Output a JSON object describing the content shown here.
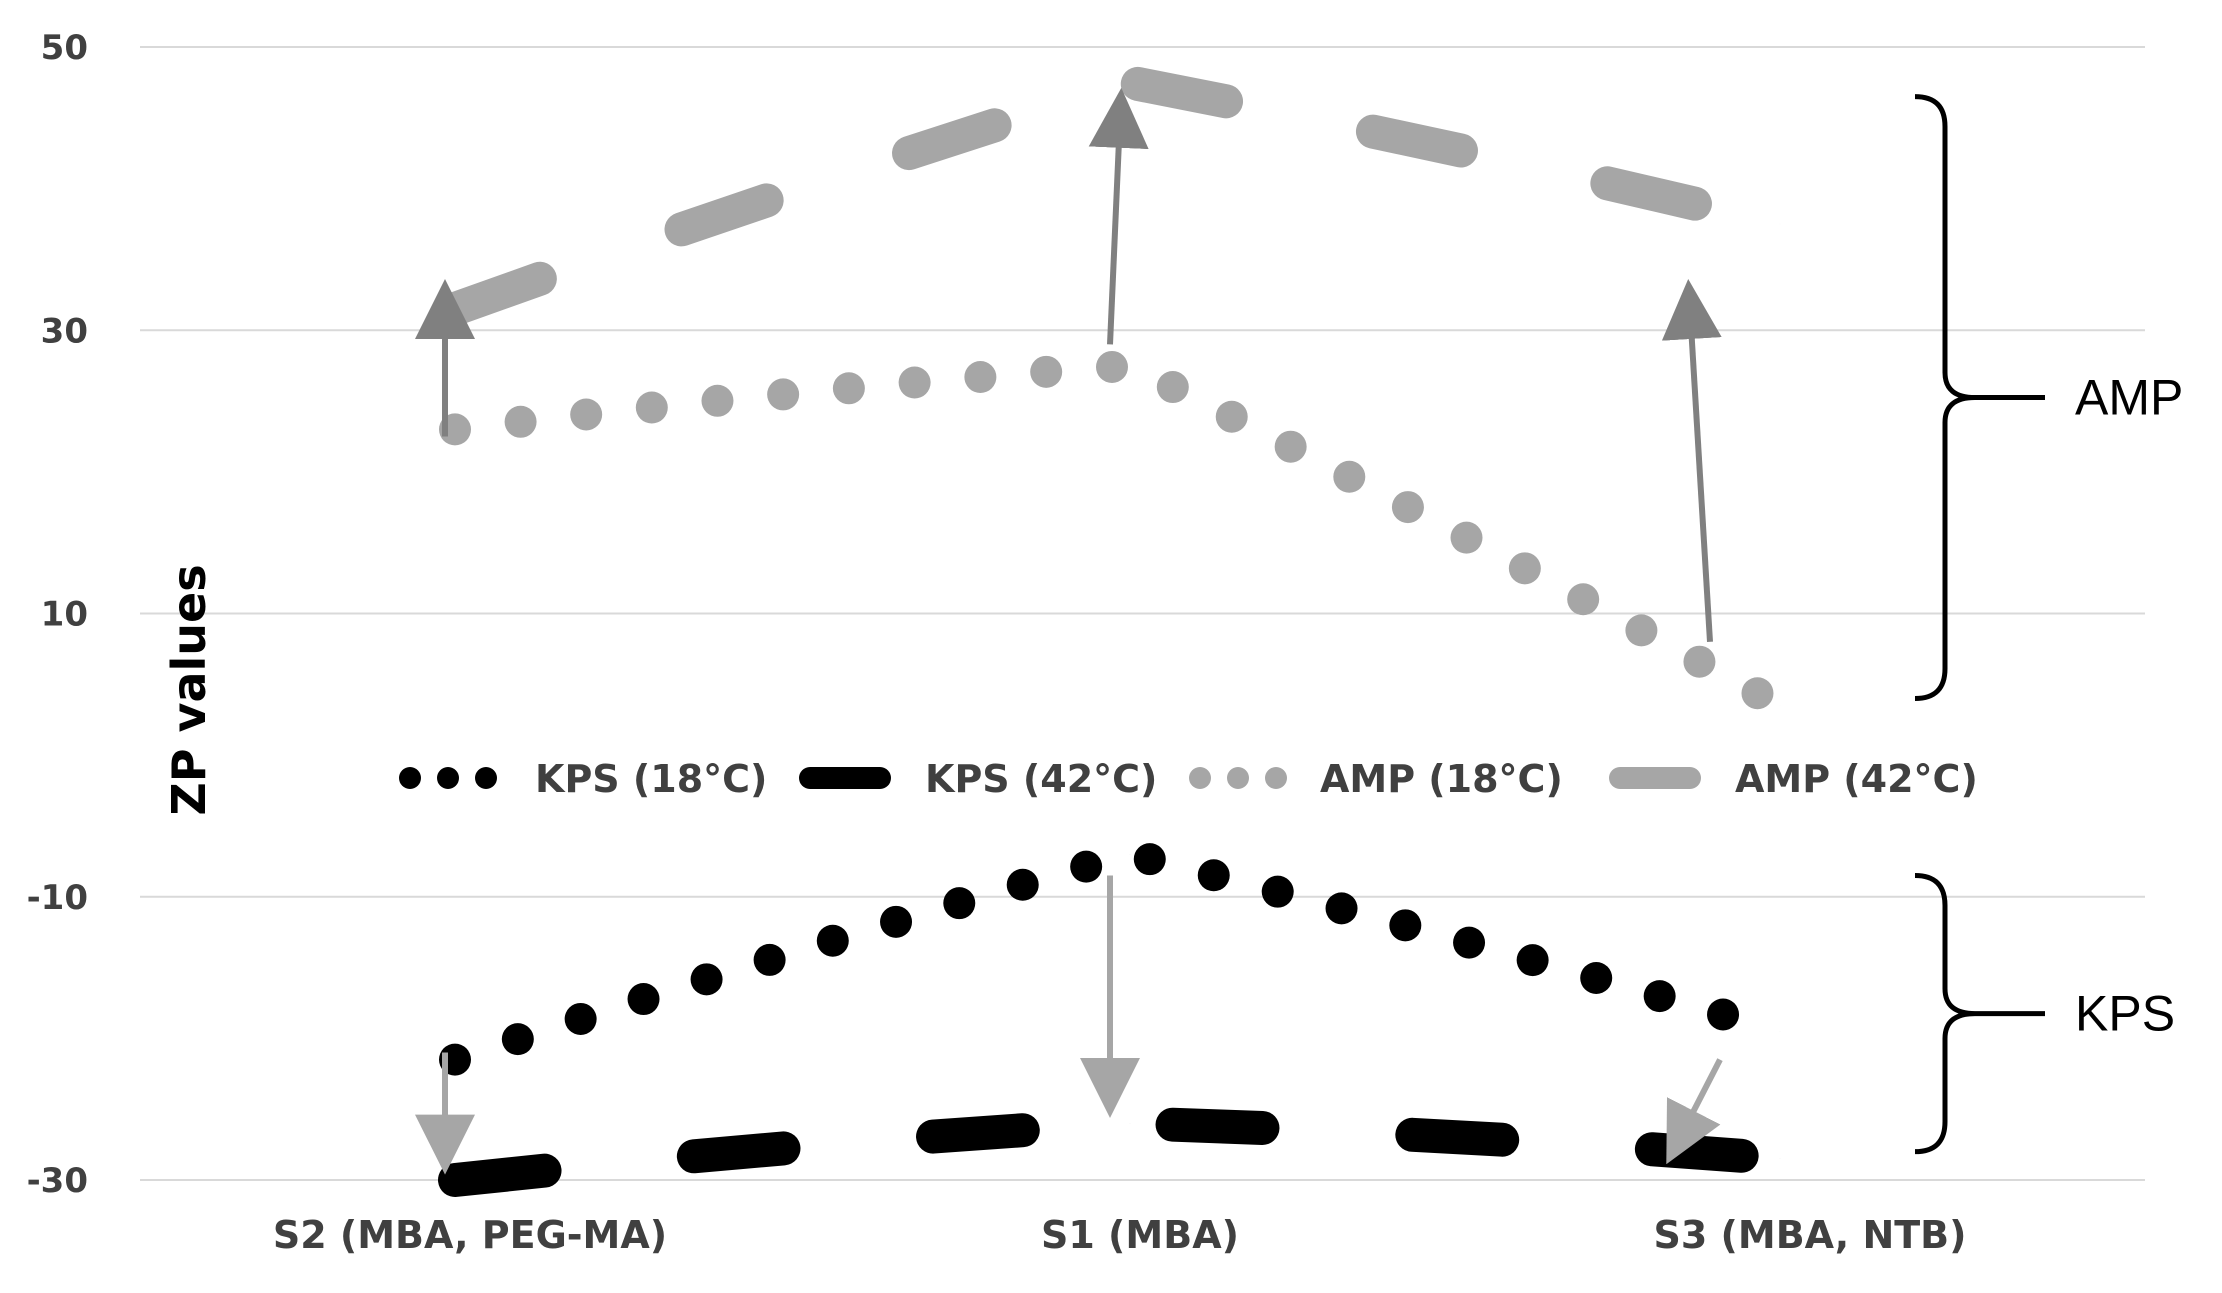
{
  "chart_data": {
    "type": "line",
    "title": "",
    "ylabel": "ZP values",
    "xlabel": "",
    "ylim": [
      -30,
      50
    ],
    "y_ticks": [
      "50",
      "30",
      "10",
      "-10",
      "-30"
    ],
    "y_tick_values": [
      50,
      30,
      10,
      -10,
      -30
    ],
    "grid": true,
    "legend_placement": "center",
    "categories": [
      "S2 (MBA, PEG-MA)",
      "S1 (MBA)",
      "S3 (MBA, NTB)"
    ],
    "series": [
      {
        "name": "KPS (18°C)",
        "values": [
          -21.5,
          -7,
          -19.5
        ],
        "style": "dotted",
        "color": "#000000"
      },
      {
        "name": "KPS (42°C)",
        "values": [
          -30,
          -26,
          -28.5
        ],
        "style": "dashed",
        "color": "#000000"
      },
      {
        "name": "AMP (18°C)",
        "values": [
          23,
          27.5,
          3.5
        ],
        "style": "dotted",
        "color": "#a6a6a6"
      },
      {
        "name": "AMP (42°C)",
        "values": [
          31.5,
          47.5,
          37.5
        ],
        "style": "dashed",
        "color": "#a6a6a6"
      }
    ],
    "arrows": [
      {
        "category_index": 0,
        "from": 22.5,
        "to": 31.5,
        "color": "#808080"
      },
      {
        "category_index": 1,
        "from": 29,
        "to": 45,
        "color": "#808080"
      },
      {
        "category_index": 2,
        "from": 8,
        "to": 31.5,
        "color": "#808080"
      },
      {
        "category_index": 0,
        "from": -21,
        "to": -27.5,
        "color": "#a6a6a6"
      },
      {
        "category_index": 1,
        "from": -8.5,
        "to": -23.5,
        "color": "#a6a6a6"
      },
      {
        "category_index": 2,
        "from": -21.5,
        "to": -27,
        "color": "#a6a6a6"
      }
    ],
    "brackets": [
      {
        "label": "AMP",
        "from": 46.5,
        "to": 4
      },
      {
        "label": "KPS",
        "from": -8.5,
        "to": -28
      }
    ]
  }
}
